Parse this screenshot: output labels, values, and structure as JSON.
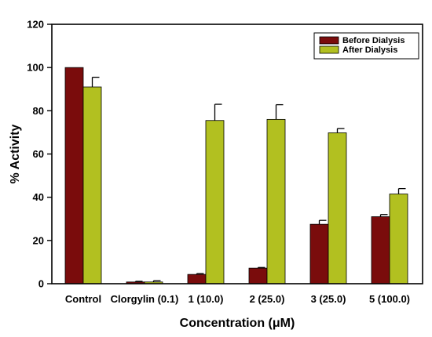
{
  "chart_data": {
    "type": "bar",
    "title": "",
    "xlabel": "Concentration (μM)",
    "ylabel": "% Activity",
    "ylim": [
      0,
      120
    ],
    "yticks": [
      0,
      20,
      40,
      60,
      80,
      100,
      120
    ],
    "categories": [
      "Control",
      "Clorgylin (0.1)",
      "1 (10.0)",
      "2 (25.0)",
      "3 (25.0)",
      "5 (100.0)"
    ],
    "series": [
      {
        "name": "Before Dialysis",
        "color": "#7a0c0c",
        "values": [
          100,
          0.8,
          4.3,
          7.2,
          27.5,
          31
        ],
        "errors": [
          0,
          0.3,
          0.4,
          0.3,
          1.8,
          1.0
        ]
      },
      {
        "name": "After Dialysis",
        "color": "#b2c020",
        "values": [
          91,
          0.8,
          75.5,
          76,
          69.8,
          41.5
        ],
        "errors": [
          4.5,
          0.6,
          7.5,
          6.8,
          2.0,
          2.5
        ]
      }
    ],
    "legend_position": "top-right",
    "grid": false
  }
}
